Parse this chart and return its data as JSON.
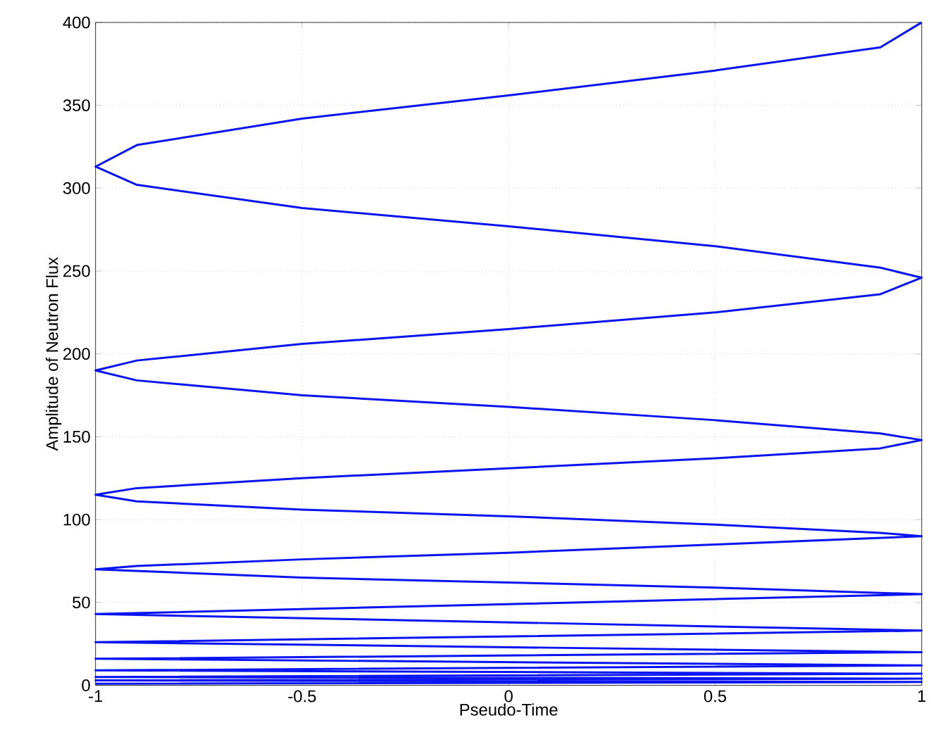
{
  "chart_data": {
    "type": "line",
    "xlabel": "Pseudo-Time",
    "ylabel": "Amplitude of Neutron Flux",
    "xlim": [
      -1,
      1
    ],
    "ylim": [
      0,
      400
    ],
    "xticks": [
      -1,
      -0.5,
      0,
      0.5,
      1
    ],
    "yticks": [
      0,
      50,
      100,
      150,
      200,
      250,
      300,
      350,
      400
    ],
    "grid": true,
    "series": [
      {
        "color": "#0a14f0",
        "x": [
          -1,
          1,
          -1,
          1,
          -1,
          1,
          -1,
          1,
          -1,
          1,
          -1,
          1,
          -1,
          1,
          0.5,
          0,
          -0.5,
          -1,
          -0.9,
          -0.5,
          0,
          0.5,
          1,
          0.9,
          0.5,
          0,
          -0.5,
          -0.9,
          -1,
          -0.9,
          -0.5,
          0,
          0.5,
          0.9,
          1,
          0.9,
          0.5,
          0,
          -0.5,
          -0.9,
          -1,
          -0.9,
          -0.5,
          0,
          0.5,
          0.9,
          1,
          0.9,
          0.5,
          0,
          -0.5,
          -0.9,
          -1,
          -0.9,
          -0.5,
          0,
          0.5,
          0.9,
          1
        ],
        "values": [
          1,
          2,
          3,
          4,
          5,
          7,
          9,
          12,
          16,
          20,
          26,
          33,
          43,
          55,
          59,
          62,
          65,
          70,
          72,
          76,
          80,
          85,
          90,
          92,
          97,
          102,
          106,
          111,
          115,
          119,
          125,
          131,
          137,
          143,
          148,
          152,
          160,
          168,
          175,
          184,
          190,
          196,
          206,
          215,
          225,
          236,
          246,
          252,
          265,
          277,
          288,
          302,
          313,
          326,
          342,
          356,
          371,
          385,
          400
        ]
      }
    ]
  }
}
